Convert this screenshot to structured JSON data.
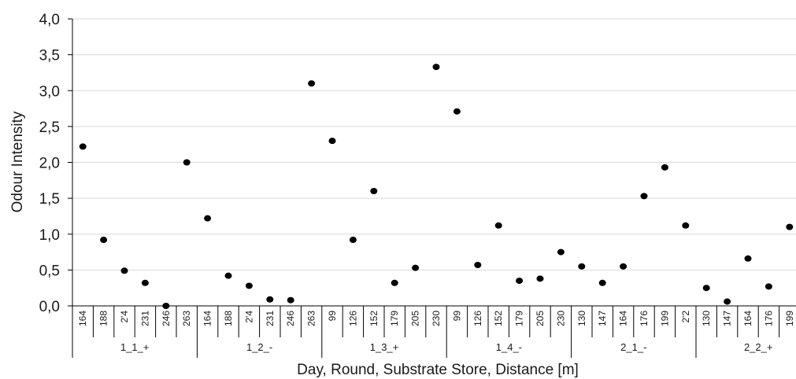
{
  "chart_data": {
    "type": "scatter",
    "xlabel": "Day, Round, Substrate Store, Distance [m]",
    "ylabel": "Odour Intensity",
    "ylim": [
      0,
      4
    ],
    "y_ticks": [
      "0,0",
      "0,5",
      "1,0",
      "1,5",
      "2,0",
      "2,5",
      "3,0",
      "3,5",
      "4,0"
    ],
    "grid": "horizontal",
    "groups": [
      {
        "label": "1_1_+",
        "distances": [
          "164",
          "188",
          "2'4",
          "231",
          "246",
          "263"
        ],
        "values": [
          2.22,
          0.92,
          0.49,
          0.32,
          0.0,
          2.0
        ]
      },
      {
        "label": "1_2_-",
        "distances": [
          "164",
          "188",
          "2'4",
          "231",
          "246",
          "263"
        ],
        "values": [
          1.22,
          0.42,
          0.28,
          0.09,
          0.08,
          3.1
        ]
      },
      {
        "label": "1_3_+",
        "distances": [
          "99",
          "126",
          "152",
          "179",
          "205",
          "230"
        ],
        "values": [
          2.3,
          0.92,
          1.6,
          0.32,
          0.53,
          3.33
        ]
      },
      {
        "label": "1_4_-",
        "distances": [
          "99",
          "126",
          "152",
          "179",
          "205",
          "230"
        ],
        "values": [
          2.71,
          0.57,
          1.12,
          0.35,
          0.38,
          0.75
        ]
      },
      {
        "label": "2_1_-",
        "distances": [
          "130",
          "147",
          "164",
          "176",
          "199",
          "2'2"
        ],
        "values": [
          0.55,
          0.32,
          0.55,
          1.53,
          1.93,
          1.12
        ]
      },
      {
        "label": "2_2_+",
        "distances": [
          "130",
          "147",
          "164",
          "176",
          "199"
        ],
        "values": [
          0.25,
          0.06,
          0.66,
          0.27,
          1.1
        ]
      }
    ],
    "marker_color": "#000000",
    "grid_color": "#d9d9d9",
    "axis_color": "#000000"
  }
}
